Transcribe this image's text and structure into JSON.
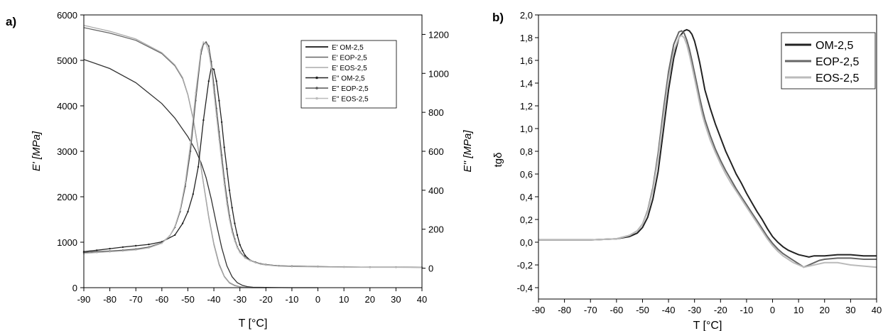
{
  "chart_data": [
    {
      "panel": "a)",
      "type": "line",
      "xlabel": "T [°C]",
      "ylabel_left": "E' [MPa]",
      "ylabel_right": "E'' [MPa]",
      "xlim": [
        -90,
        40
      ],
      "ylim_left": [
        0,
        6000
      ],
      "ylim_right": [
        -100,
        1300
      ],
      "xticks": [
        "-90",
        "-80",
        "-70",
        "-60",
        "-50",
        "-40",
        "-30",
        "-20",
        "-10",
        "0",
        "10",
        "20",
        "30",
        "40"
      ],
      "yticks_left": [
        "0",
        "1000",
        "2000",
        "3000",
        "4000",
        "5000",
        "6000"
      ],
      "yticks_right": [
        "0",
        "200",
        "400",
        "600",
        "800",
        "1000",
        "1200"
      ],
      "legend_position": "top-right",
      "series": [
        {
          "name": "E' OM-2,5",
          "axis": "left",
          "color": "#333333",
          "x": [
            -90,
            -80,
            -70,
            -60,
            -55,
            -50,
            -47,
            -45,
            -43,
            -41,
            -39,
            -37,
            -35,
            -33,
            -31,
            -29,
            -27,
            -25,
            -20,
            -10,
            0
          ],
          "y": [
            5020,
            4820,
            4510,
            4050,
            3730,
            3320,
            3020,
            2760,
            2420,
            1950,
            1400,
            880,
            480,
            240,
            110,
            50,
            20,
            10,
            5,
            0,
            0
          ]
        },
        {
          "name": "E' EOP-2,5",
          "axis": "left",
          "color": "#666666",
          "x": [
            -90,
            -80,
            -70,
            -60,
            -55,
            -52,
            -50,
            -48,
            -46,
            -44,
            -42,
            -40,
            -38,
            -36,
            -34,
            -32,
            -30,
            -28,
            -25,
            -20
          ],
          "y": [
            5720,
            5600,
            5440,
            5150,
            4880,
            4600,
            4240,
            3720,
            3050,
            2300,
            1560,
            960,
            520,
            250,
            110,
            50,
            20,
            5,
            0,
            0
          ]
        },
        {
          "name": "E' EOS-2,5",
          "axis": "left",
          "color": "#aaaaaa",
          "x": [
            -90,
            -80,
            -70,
            -60,
            -55,
            -52,
            -50,
            -48,
            -46,
            -44,
            -42,
            -40,
            -38,
            -36,
            -34,
            -32,
            -30,
            -28,
            -25,
            -20
          ],
          "y": [
            5770,
            5640,
            5470,
            5170,
            4900,
            4620,
            4250,
            3730,
            3050,
            2290,
            1540,
            940,
            500,
            240,
            100,
            40,
            15,
            5,
            0,
            0
          ]
        },
        {
          "name": "E'' OM-2,5",
          "axis": "right",
          "color": "#222222",
          "x": [
            -90,
            -85,
            -80,
            -75,
            -70,
            -65,
            -60,
            -55,
            -52,
            -50,
            -48,
            -46,
            -44,
            -42,
            -41,
            -40,
            -39,
            -38,
            -37,
            -36,
            -35,
            -34,
            -33,
            -32,
            -31,
            -30,
            -29,
            -28,
            -26,
            -24,
            -22,
            -20,
            -15,
            -10,
            0,
            10,
            20,
            30,
            40
          ],
          "y": [
            85,
            92,
            100,
            108,
            115,
            122,
            135,
            170,
            230,
            290,
            380,
            520,
            760,
            960,
            1030,
            1020,
            960,
            860,
            750,
            620,
            510,
            400,
            310,
            230,
            170,
            120,
            90,
            65,
            40,
            30,
            22,
            18,
            12,
            10,
            8,
            6,
            5,
            5,
            4
          ]
        },
        {
          "name": "E'' EOP-2,5",
          "axis": "right",
          "color": "#555555",
          "x": [
            -90,
            -85,
            -80,
            -75,
            -70,
            -65,
            -60,
            -57,
            -55,
            -53,
            -51,
            -49,
            -47,
            -45,
            -44,
            -43,
            -42,
            -41,
            -40,
            -39,
            -38,
            -37,
            -36,
            -35,
            -34,
            -33,
            -32,
            -31,
            -30,
            -28,
            -26,
            -24,
            -22,
            -20,
            -15,
            -10,
            0,
            10,
            20,
            30,
            40
          ],
          "y": [
            80,
            85,
            88,
            92,
            98,
            108,
            130,
            165,
            210,
            290,
            420,
            600,
            860,
            1100,
            1150,
            1160,
            1140,
            1060,
            940,
            820,
            700,
            580,
            460,
            360,
            270,
            200,
            150,
            110,
            85,
            55,
            40,
            30,
            22,
            18,
            12,
            10,
            8,
            6,
            5,
            5,
            4
          ]
        },
        {
          "name": "E'' EOS-2,5",
          "axis": "right",
          "color": "#bbbbbb",
          "x": [
            -90,
            -85,
            -80,
            -75,
            -70,
            -65,
            -60,
            -57,
            -55,
            -53,
            -51,
            -49,
            -47,
            -45,
            -44,
            -43,
            -42,
            -41,
            -40,
            -39,
            -38,
            -37,
            -36,
            -35,
            -34,
            -33,
            -32,
            -31,
            -30,
            -28,
            -26,
            -24,
            -22,
            -20,
            -15,
            -10,
            0,
            10,
            20,
            30,
            40
          ],
          "y": [
            75,
            80,
            84,
            88,
            94,
            104,
            128,
            165,
            215,
            300,
            440,
            640,
            900,
            1120,
            1160,
            1150,
            1110,
            1030,
            900,
            780,
            660,
            540,
            430,
            330,
            250,
            185,
            140,
            105,
            80,
            52,
            38,
            28,
            20,
            16,
            10,
            8,
            6,
            5,
            4,
            4,
            3
          ]
        }
      ]
    },
    {
      "panel": "b)",
      "type": "line",
      "xlabel": "T [°C]",
      "ylabel": "tgδ",
      "xlim": [
        -90,
        40
      ],
      "ylim": [
        -0.5,
        2.0
      ],
      "xticks": [
        "-90",
        "-80",
        "-70",
        "-60",
        "-50",
        "-40",
        "-30",
        "-20",
        "-10",
        "0",
        "10",
        "20",
        "30",
        "40"
      ],
      "yticks": [
        "-0,4",
        "-0,2",
        "0,0",
        "0,2",
        "0,4",
        "0,6",
        "0,8",
        "1,0",
        "1,2",
        "1,4",
        "1,6",
        "1,8",
        "2,0"
      ],
      "legend_position": "top-right",
      "series": [
        {
          "name": "OM-2,5",
          "color": "#222222",
          "x": [
            -90,
            -80,
            -70,
            -60,
            -55,
            -52,
            -50,
            -48,
            -46,
            -44,
            -42,
            -40,
            -38,
            -36,
            -34,
            -33,
            -32,
            -31,
            -30,
            -29,
            -28,
            -27,
            -26,
            -24,
            -22,
            -20,
            -18,
            -16,
            -14,
            -12,
            -10,
            -8,
            -6,
            -4,
            -2,
            0,
            2,
            4,
            6,
            8,
            10,
            12,
            14,
            16,
            18,
            20,
            25,
            30,
            35,
            40
          ],
          "y": [
            0.02,
            0.02,
            0.02,
            0.03,
            0.05,
            0.08,
            0.13,
            0.22,
            0.38,
            0.62,
            0.98,
            1.34,
            1.62,
            1.8,
            1.86,
            1.87,
            1.86,
            1.83,
            1.77,
            1.68,
            1.58,
            1.46,
            1.34,
            1.18,
            1.04,
            0.92,
            0.8,
            0.7,
            0.6,
            0.52,
            0.43,
            0.35,
            0.27,
            0.2,
            0.12,
            0.05,
            0.0,
            -0.04,
            -0.07,
            -0.09,
            -0.11,
            -0.12,
            -0.13,
            -0.12,
            -0.12,
            -0.12,
            -0.11,
            -0.11,
            -0.12,
            -0.12
          ]
        },
        {
          "name": "EOP-2,5",
          "color": "#666666",
          "x": [
            -90,
            -80,
            -70,
            -60,
            -55,
            -52,
            -50,
            -48,
            -46,
            -44,
            -42,
            -40,
            -38,
            -36,
            -35,
            -34,
            -33,
            -32,
            -31,
            -30,
            -29,
            -28,
            -27,
            -26,
            -24,
            -22,
            -20,
            -18,
            -16,
            -14,
            -12,
            -10,
            -8,
            -6,
            -4,
            -2,
            0,
            2,
            4,
            6,
            8,
            10,
            12,
            14,
            16,
            18,
            20,
            25,
            30,
            35,
            40
          ],
          "y": [
            0.02,
            0.02,
            0.02,
            0.03,
            0.06,
            0.1,
            0.16,
            0.28,
            0.48,
            0.78,
            1.16,
            1.5,
            1.74,
            1.85,
            1.86,
            1.84,
            1.78,
            1.7,
            1.6,
            1.49,
            1.38,
            1.27,
            1.17,
            1.08,
            0.94,
            0.82,
            0.72,
            0.63,
            0.55,
            0.47,
            0.4,
            0.33,
            0.26,
            0.19,
            0.12,
            0.05,
            -0.01,
            -0.06,
            -0.1,
            -0.13,
            -0.16,
            -0.19,
            -0.22,
            -0.2,
            -0.18,
            -0.16,
            -0.15,
            -0.14,
            -0.14,
            -0.15,
            -0.15
          ]
        },
        {
          "name": "EOS-2,5",
          "color": "#bbbbbb",
          "x": [
            -90,
            -80,
            -70,
            -60,
            -55,
            -52,
            -50,
            -48,
            -46,
            -44,
            -42,
            -40,
            -38,
            -36,
            -35,
            -34,
            -33,
            -32,
            -31,
            -30,
            -29,
            -28,
            -27,
            -26,
            -24,
            -22,
            -20,
            -18,
            -16,
            -14,
            -12,
            -10,
            -8,
            -6,
            -4,
            -2,
            0,
            2,
            4,
            6,
            8,
            10,
            12,
            14,
            16,
            18,
            20,
            25,
            30,
            35,
            40
          ],
          "y": [
            0.02,
            0.02,
            0.02,
            0.03,
            0.06,
            0.1,
            0.16,
            0.27,
            0.46,
            0.74,
            1.1,
            1.44,
            1.68,
            1.8,
            1.82,
            1.8,
            1.74,
            1.65,
            1.55,
            1.44,
            1.33,
            1.22,
            1.12,
            1.04,
            0.9,
            0.79,
            0.69,
            0.6,
            0.52,
            0.45,
            0.38,
            0.31,
            0.24,
            0.17,
            0.1,
            0.03,
            -0.03,
            -0.08,
            -0.12,
            -0.15,
            -0.18,
            -0.2,
            -0.22,
            -0.21,
            -0.2,
            -0.19,
            -0.18,
            -0.18,
            -0.2,
            -0.21,
            -0.22
          ]
        }
      ]
    }
  ]
}
